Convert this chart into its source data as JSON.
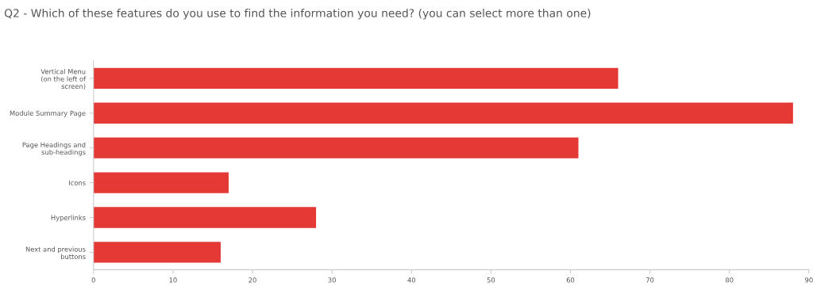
{
  "chart_data": {
    "type": "bar",
    "orientation": "horizontal",
    "title": "Q2 - Which of these features do you use to find the information you need? (you can select more than one)",
    "categories": [
      "Vertical Menu\n(on the left of\nscreen)",
      "Module Summary Page",
      "Page Headings and\nsub-headings",
      "Icons",
      "Hyperlinks",
      "Next and previous\nbuttons"
    ],
    "values": [
      66,
      88,
      61,
      17,
      28,
      16
    ],
    "color": "#e53935",
    "xlim": [
      0,
      90
    ],
    "xticks": [
      0,
      10,
      20,
      30,
      40,
      50,
      60,
      70,
      80,
      90
    ],
    "grid": false
  }
}
